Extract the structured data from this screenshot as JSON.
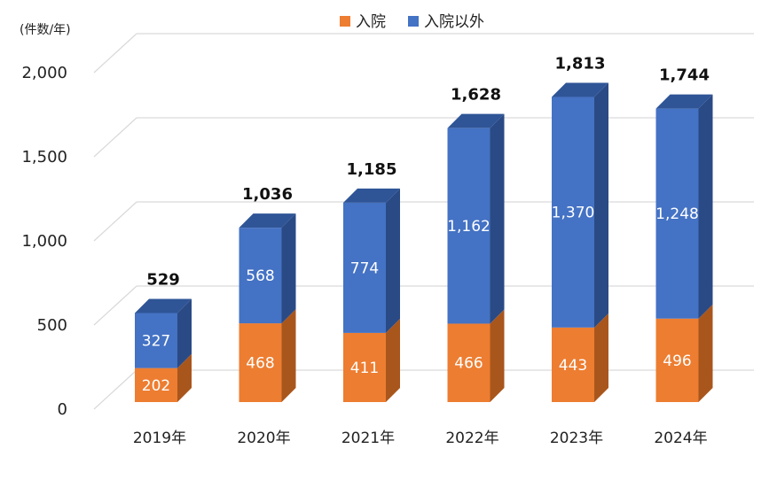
{
  "chart_data": {
    "type": "bar",
    "stacked": true,
    "unit_label": "(件数/年)",
    "categories": [
      "2019年",
      "2020年",
      "2021年",
      "2022年",
      "2023年",
      "2024年"
    ],
    "series": [
      {
        "name": "入院",
        "values": [
          202,
          468,
          411,
          466,
          443,
          496
        ],
        "color": "#ED7D31",
        "side_color": "#A9561C",
        "top_color": "#F4A064"
      },
      {
        "name": "入院以外",
        "values": [
          327,
          568,
          774,
          1162,
          1370,
          1248
        ],
        "color": "#4472C4",
        "side_color": "#2A4A85",
        "top_color": "#2F5597"
      }
    ],
    "totals": [
      529,
      1036,
      1185,
      1628,
      1813,
      1744
    ],
    "y_ticks": [
      0,
      500,
      1000,
      1500,
      2000
    ],
    "y_tick_labels": [
      "0",
      "500",
      "1,000",
      "1,500",
      "2,000"
    ],
    "ylim": [
      0,
      2000
    ],
    "grid": true,
    "legend_position": "top"
  }
}
